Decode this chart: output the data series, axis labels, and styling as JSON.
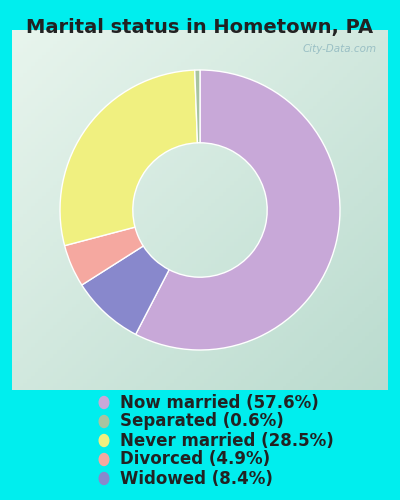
{
  "title": "Marital status in Hometown, PA",
  "slices": [
    57.6,
    8.4,
    4.9,
    28.5,
    0.6
  ],
  "labels": [
    "Now married (57.6%)",
    "Separated (0.6%)",
    "Never married (28.5%)",
    "Divorced (4.9%)",
    "Widowed (8.4%)"
  ],
  "legend_colors": [
    "#C8A8D8",
    "#A8C4A0",
    "#F0F080",
    "#F5A8A0",
    "#8888CC"
  ],
  "slice_colors": [
    "#C8A8D8",
    "#8888CC",
    "#F5A8A0",
    "#F0F080",
    "#A8C4A0"
  ],
  "bg_outer": "#00EEEE",
  "title_fontsize": 14,
  "legend_fontsize": 12,
  "watermark": "City-Data.com"
}
